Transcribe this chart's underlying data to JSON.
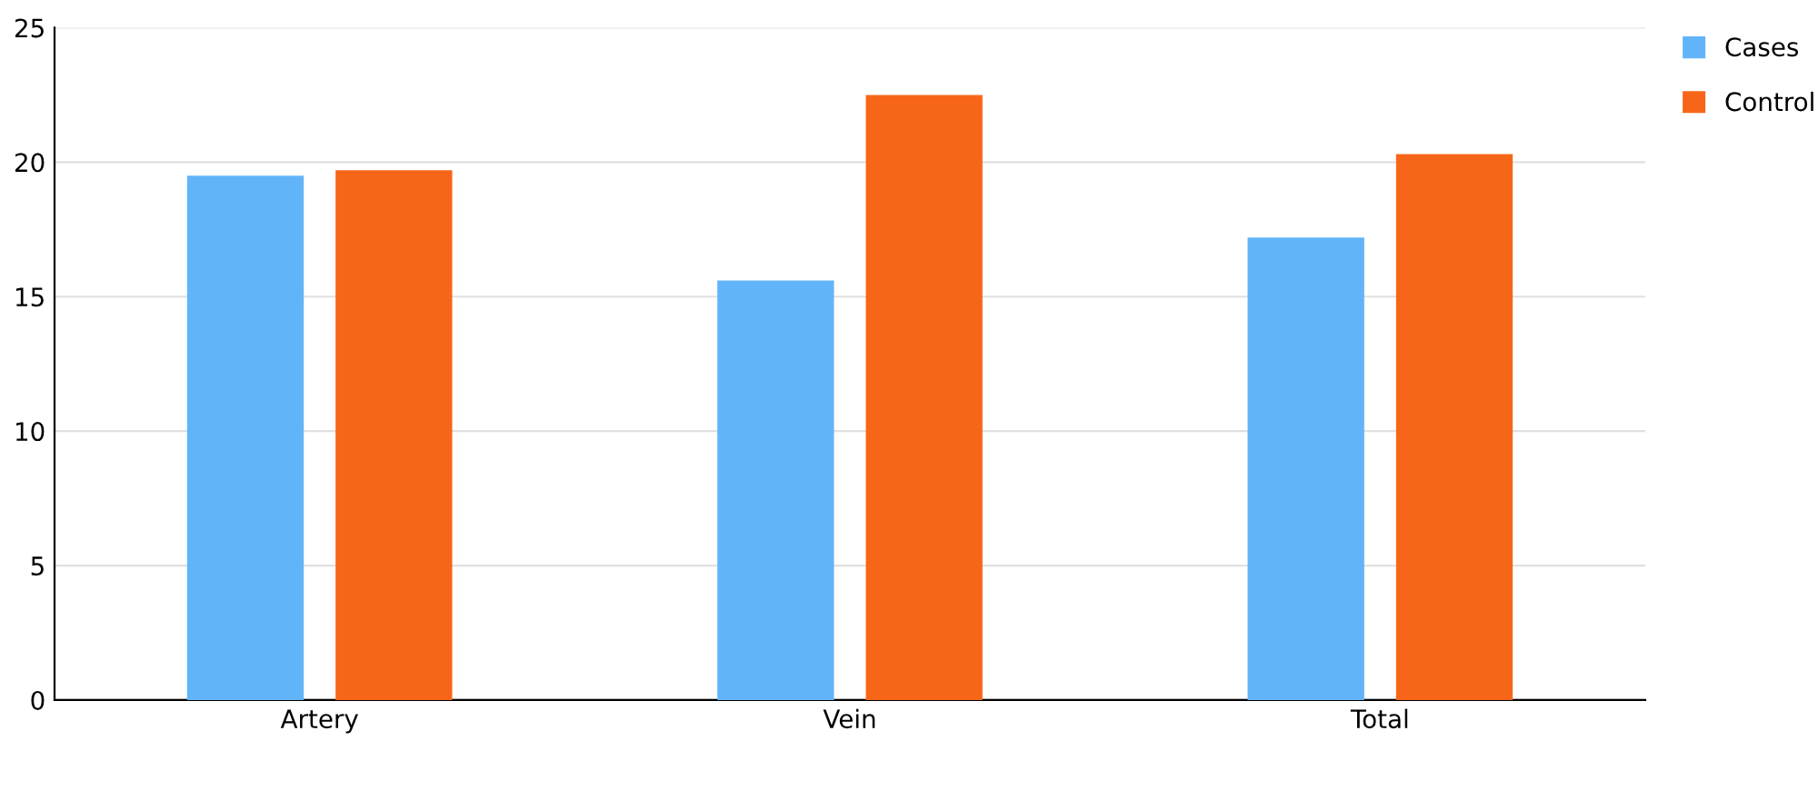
{
  "chart_data": {
    "type": "bar",
    "categories": [
      "Artery",
      "Vein",
      "Total"
    ],
    "series": [
      {
        "name": "Cases",
        "color": "#62b4f9",
        "values": [
          19.5,
          15.6,
          17.2
        ]
      },
      {
        "name": "Control",
        "color": "#f76618",
        "values": [
          19.7,
          22.5,
          20.3
        ]
      }
    ],
    "ylim": [
      0,
      25
    ],
    "yticks": [
      0,
      5,
      10,
      15,
      20,
      25
    ],
    "grid": "y",
    "legend": "top right"
  }
}
